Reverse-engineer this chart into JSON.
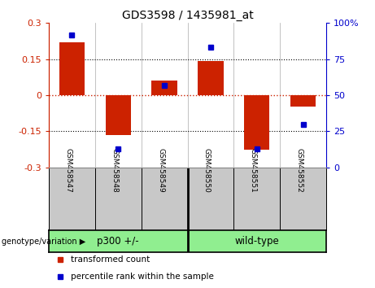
{
  "title": "GDS3598 / 1435981_at",
  "samples": [
    "GSM458547",
    "GSM458548",
    "GSM458549",
    "GSM458550",
    "GSM458551",
    "GSM458552"
  ],
  "red_bars": [
    0.22,
    -0.165,
    0.062,
    0.143,
    -0.225,
    -0.048
  ],
  "blue_dots": [
    92,
    13,
    57,
    83,
    13,
    30
  ],
  "ylim_left": [
    -0.3,
    0.3
  ],
  "ylim_right": [
    0,
    100
  ],
  "yticks_left": [
    -0.3,
    -0.15,
    0,
    0.15,
    0.3
  ],
  "yticks_left_labels": [
    "-0.3",
    "-0.15",
    "0",
    "0.15",
    "0.3"
  ],
  "yticks_right": [
    0,
    25,
    50,
    75,
    100
  ],
  "yticks_right_labels": [
    "0",
    "25",
    "50",
    "75",
    "100%"
  ],
  "group1_label": "p300 +/-",
  "group2_label": "wild-type",
  "group_color": "#90EE90",
  "genotype_label": "genotype/variation",
  "red_color": "#CC2200",
  "blue_color": "#0000CC",
  "bar_width": 0.55,
  "names_bg": "#C8C8C8",
  "legend_red_label": "transformed count",
  "legend_blue_label": "percentile rank within the sample"
}
